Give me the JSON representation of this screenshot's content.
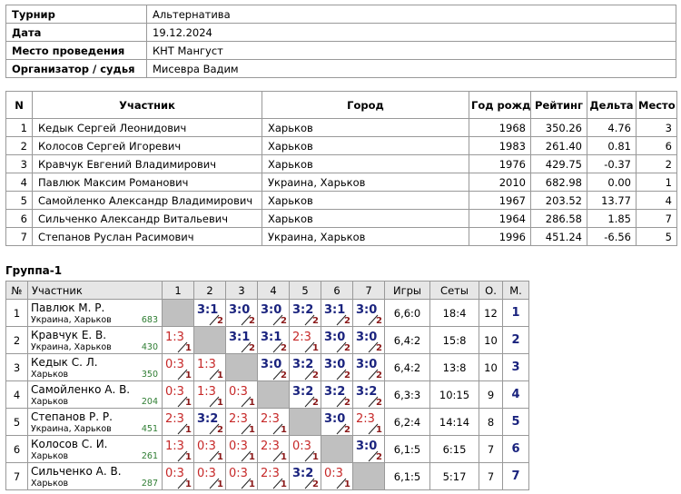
{
  "info": {
    "rows": [
      [
        "Турнир",
        "Альтернатива"
      ],
      [
        "Дата",
        "19.12.2024"
      ],
      [
        "Место проведения",
        "КНТ Мангуст"
      ],
      [
        "Организатор / судья",
        "Мисевра Вадим"
      ]
    ]
  },
  "participants": {
    "header": [
      "N",
      "Участник",
      "Город",
      "Год рожд.",
      "Рейтинг",
      "Дельта",
      "Место"
    ],
    "rows": [
      [
        "1",
        "Кедык Сергей Леонидович",
        "Харьков",
        "1968",
        "350.26",
        "4.76",
        "3"
      ],
      [
        "2",
        "Колосов Сергей Игоревич",
        "Харьков",
        "1983",
        "261.40",
        "0.81",
        "6"
      ],
      [
        "3",
        "Кравчук Евгений Владимирович",
        "Харьков",
        "1976",
        "429.75",
        "-0.37",
        "2"
      ],
      [
        "4",
        "Павлюк Максим Романович",
        "Украина, Харьков",
        "2010",
        "682.98",
        "0.00",
        "1"
      ],
      [
        "5",
        "Самойленко Александр Владимирович",
        "Харьков",
        "1967",
        "203.52",
        "13.77",
        "4"
      ],
      [
        "6",
        "Сильченко Александр Витальевич",
        "Харьков",
        "1964",
        "286.58",
        "1.85",
        "7"
      ],
      [
        "7",
        "Степанов Руслан Расимович",
        "Украина, Харьков",
        "1996",
        "451.24",
        "-6.56",
        "5"
      ]
    ]
  },
  "group": {
    "title": "Группа-1",
    "header": [
      "№",
      "Участник",
      "1",
      "2",
      "3",
      "4",
      "5",
      "6",
      "7",
      "Игры",
      "Сеты",
      "О.",
      "М."
    ],
    "rows": [
      {
        "n": "1",
        "name": "Павлюк М. Р.",
        "city": "Украина, Харьков",
        "rating": "683",
        "results": [
          null,
          {
            "score": "3:1",
            "points": "2"
          },
          {
            "score": "3:0",
            "points": "2"
          },
          {
            "score": "3:0",
            "points": "2"
          },
          {
            "score": "3:2",
            "points": "2"
          },
          {
            "score": "3:1",
            "points": "2"
          },
          {
            "score": "3:0",
            "points": "2"
          }
        ],
        "games": "6,6:0",
        "sets": "18:4",
        "score": "12",
        "place": "1"
      },
      {
        "n": "2",
        "name": "Кравчук Е. В.",
        "city": "Украина, Харьков",
        "rating": "430",
        "results": [
          {
            "score": "1:3",
            "points": "1"
          },
          null,
          {
            "score": "3:1",
            "points": "2"
          },
          {
            "score": "3:1",
            "points": "2"
          },
          {
            "score": "2:3",
            "points": "1"
          },
          {
            "score": "3:0",
            "points": "2"
          },
          {
            "score": "3:0",
            "points": "2"
          }
        ],
        "games": "6,4:2",
        "sets": "15:8",
        "score": "10",
        "place": "2"
      },
      {
        "n": "3",
        "name": "Кедык С. Л.",
        "city": "Харьков",
        "rating": "350",
        "results": [
          {
            "score": "0:3",
            "points": "1"
          },
          {
            "score": "1:3",
            "points": "1"
          },
          null,
          {
            "score": "3:0",
            "points": "2"
          },
          {
            "score": "3:2",
            "points": "2"
          },
          {
            "score": "3:0",
            "points": "2"
          },
          {
            "score": "3:0",
            "points": "2"
          }
        ],
        "games": "6,4:2",
        "sets": "13:8",
        "score": "10",
        "place": "3"
      },
      {
        "n": "4",
        "name": "Самойленко А. В.",
        "city": "Харьков",
        "rating": "204",
        "results": [
          {
            "score": "0:3",
            "points": "1"
          },
          {
            "score": "1:3",
            "points": "1"
          },
          {
            "score": "0:3",
            "points": "1"
          },
          null,
          {
            "score": "3:2",
            "points": "2"
          },
          {
            "score": "3:2",
            "points": "2"
          },
          {
            "score": "3:2",
            "points": "2"
          }
        ],
        "games": "6,3:3",
        "sets": "10:15",
        "score": "9",
        "place": "4"
      },
      {
        "n": "5",
        "name": "Степанов Р. Р.",
        "city": "Украина, Харьков",
        "rating": "451",
        "results": [
          {
            "score": "2:3",
            "points": "1"
          },
          {
            "score": "3:2",
            "points": "2"
          },
          {
            "score": "2:3",
            "points": "1"
          },
          {
            "score": "2:3",
            "points": "1"
          },
          null,
          {
            "score": "3:0",
            "points": "2"
          },
          {
            "score": "2:3",
            "points": "1"
          }
        ],
        "games": "6,2:4",
        "sets": "14:14",
        "score": "8",
        "place": "5"
      },
      {
        "n": "6",
        "name": "Колосов С. И.",
        "city": "Харьков",
        "rating": "261",
        "results": [
          {
            "score": "1:3",
            "points": "1"
          },
          {
            "score": "0:3",
            "points": "1"
          },
          {
            "score": "0:3",
            "points": "1"
          },
          {
            "score": "2:3",
            "points": "1"
          },
          {
            "score": "0:3",
            "points": "1"
          },
          null,
          {
            "score": "3:0",
            "points": "2"
          }
        ],
        "games": "6,1:5",
        "sets": "6:15",
        "score": "7",
        "place": "6"
      },
      {
        "n": "7",
        "name": "Сильченко А. В.",
        "city": "Харьков",
        "rating": "287",
        "results": [
          {
            "score": "0:3",
            "points": "1"
          },
          {
            "score": "0:3",
            "points": "1"
          },
          {
            "score": "0:3",
            "points": "1"
          },
          {
            "score": "2:3",
            "points": "1"
          },
          {
            "score": "3:2",
            "points": "2"
          },
          {
            "score": "0:3",
            "points": "1"
          },
          null
        ],
        "games": "6,1:5",
        "sets": "5:17",
        "score": "7",
        "place": "7"
      }
    ]
  }
}
